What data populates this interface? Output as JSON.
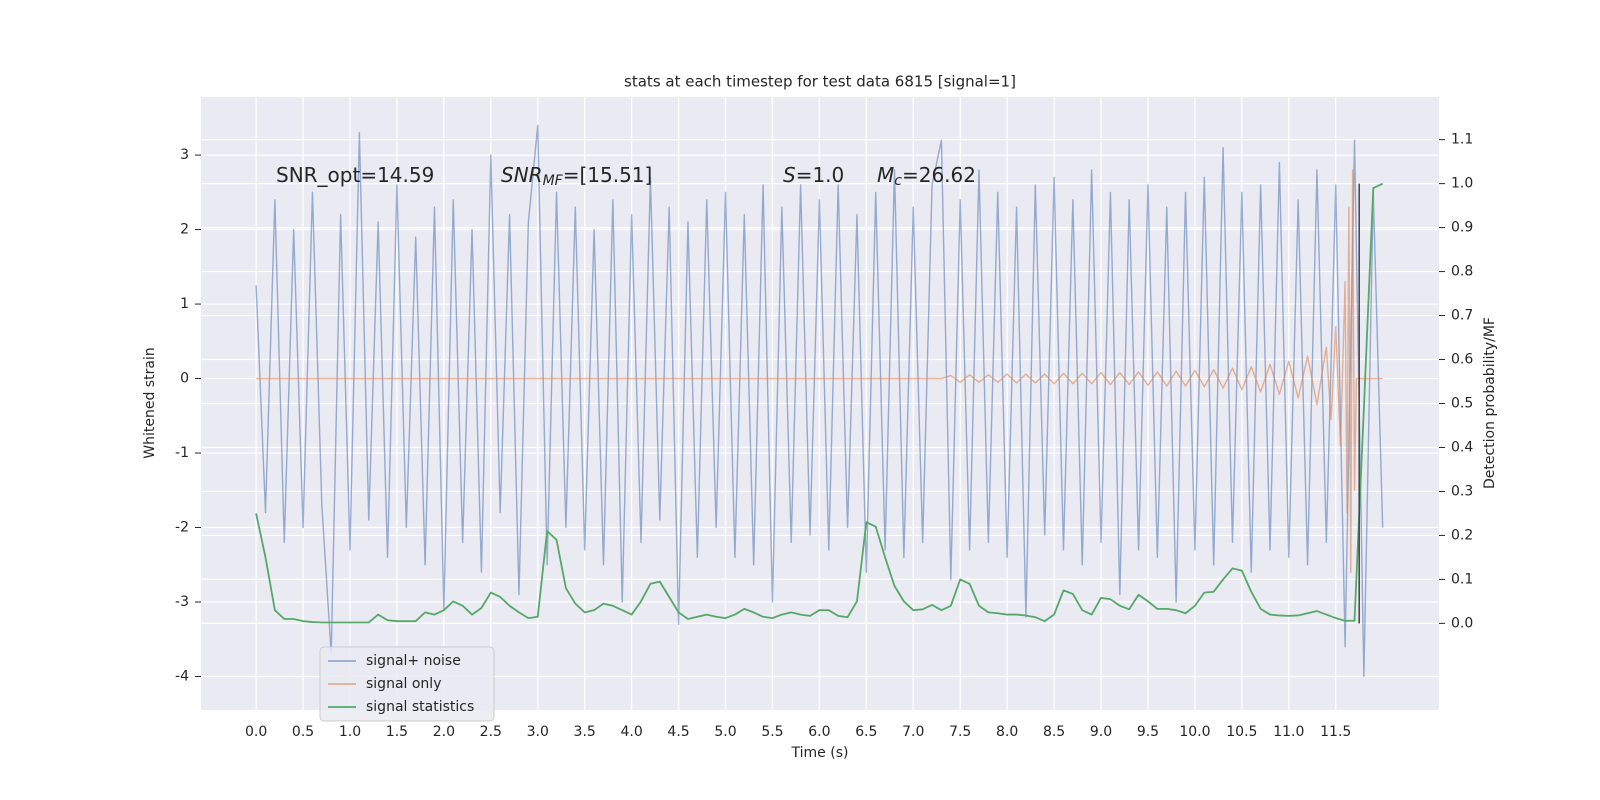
{
  "chart_data": {
    "type": "line",
    "title": "stats at each timestep for test data 6815 [signal=1]",
    "xlabel": "Time (s)",
    "ylabel": "Whitened strain",
    "y2label": "Detection probability/MF",
    "annotations": [
      {
        "text": "SNR_opt=14.59"
      },
      {
        "math": "SNR",
        "sub": "MF",
        "text": "=[15.51]"
      },
      {
        "math": "S",
        "text": "=1.0"
      },
      {
        "math": "M",
        "sub": "c",
        "text": "=26.62"
      }
    ],
    "xlim": [
      -0.587,
      12.6
    ],
    "ylim": [
      -4.45,
      3.78
    ],
    "y2lim": [
      -0.197,
      1.197
    ],
    "xticks": [
      {
        "value": 0,
        "label": "0.0"
      },
      0.5,
      {
        "value": 1,
        "label": "1.0"
      },
      1.5,
      {
        "value": 2,
        "label": "2.0"
      },
      2.5,
      {
        "value": 3,
        "label": "3.0"
      },
      3.5,
      {
        "value": 4,
        "label": "4.0"
      },
      4.5,
      {
        "value": 5,
        "label": "5.0"
      },
      5.5,
      {
        "value": 6,
        "label": "6.0"
      },
      6.5,
      {
        "value": 7,
        "label": "7.0"
      },
      7.5,
      {
        "value": 8,
        "label": "8.0"
      },
      8.5,
      {
        "value": 9,
        "label": "9.0"
      },
      9.5,
      {
        "value": 10,
        "label": "10.0"
      },
      10.5,
      {
        "value": 11,
        "label": "11.0"
      },
      11.5
    ],
    "yticks": [
      -4,
      -3,
      -2,
      -1,
      0,
      1,
      2,
      3
    ],
    "y2ticks": [
      {
        "value": 0,
        "label": "0.0"
      },
      0.1,
      0.2,
      0.3,
      0.4,
      0.5,
      0.6,
      0.7,
      0.8,
      0.9,
      {
        "value": 1,
        "label": "1.0"
      },
      1.1
    ],
    "grid": true,
    "legend": "lower left",
    "vline": {
      "x": 11.75,
      "ymin": 0,
      "ymax": 1.0,
      "color": "#444444"
    },
    "series": [
      {
        "name": "signal+ noise",
        "color": "#4c72b0",
        "x": [
          0,
          0.1,
          0.2,
          0.3,
          0.4,
          0.5,
          0.6,
          0.7,
          0.8,
          0.9,
          1,
          1.1,
          1.2,
          1.3,
          1.4,
          1.5,
          1.6,
          1.7,
          1.8,
          1.9,
          2,
          2.1,
          2.2,
          2.3,
          2.4,
          2.5,
          2.6,
          2.7,
          2.8,
          2.9,
          3,
          3.1,
          3.2,
          3.3,
          3.4,
          3.5,
          3.6,
          3.7,
          3.8,
          3.9,
          4,
          4.1,
          4.2,
          4.3,
          4.4,
          4.5,
          4.6,
          4.7,
          4.8,
          4.9,
          5,
          5.1,
          5.2,
          5.3,
          5.4,
          5.5,
          5.6,
          5.7,
          5.8,
          5.9,
          6,
          6.1,
          6.2,
          6.3,
          6.4,
          6.5,
          6.6,
          6.7,
          6.8,
          6.9,
          7,
          7.1,
          7.2,
          7.3,
          7.4,
          7.5,
          7.6,
          7.7,
          7.8,
          7.9,
          8,
          8.1,
          8.2,
          8.3,
          8.4,
          8.5,
          8.6,
          8.7,
          8.8,
          8.9,
          9,
          9.1,
          9.2,
          9.3,
          9.4,
          9.5,
          9.6,
          9.7,
          9.8,
          9.9,
          10,
          10.1,
          10.2,
          10.3,
          10.4,
          10.5,
          10.6,
          10.7,
          10.8,
          10.9,
          11,
          11.1,
          11.2,
          11.3,
          11.4,
          11.5,
          11.6,
          11.7,
          11.8,
          11.9,
          12
        ],
        "values": [
          1.25,
          -1.8,
          2.4,
          -2.2,
          2.0,
          -2.0,
          2.5,
          -1.7,
          -3.7,
          2.2,
          -2.3,
          3.3,
          -1.9,
          2.1,
          -2.4,
          2.6,
          -2.0,
          1.9,
          -2.5,
          2.3,
          -3.1,
          2.4,
          -2.2,
          2.0,
          -2.6,
          3.0,
          -1.8,
          2.2,
          -2.9,
          2.1,
          3.4,
          -2.5,
          2.5,
          -2.0,
          2.3,
          -2.3,
          2.0,
          -2.5,
          2.4,
          -3.0,
          2.2,
          -2.2,
          2.7,
          -1.9,
          2.3,
          -3.3,
          2.1,
          -2.4,
          2.4,
          -2.0,
          2.5,
          -2.4,
          2.2,
          -2.5,
          2.6,
          -3.0,
          2.3,
          -2.2,
          2.6,
          -2.1,
          2.4,
          -2.3,
          2.6,
          -2.0,
          2.2,
          -2.6,
          2.5,
          -2.3,
          2.8,
          -2.4,
          2.3,
          -2.2,
          2.6,
          3.2,
          -2.7,
          2.4,
          -2.3,
          2.8,
          -2.2,
          2.5,
          -2.4,
          2.3,
          -3.2,
          2.6,
          -2.1,
          2.7,
          -2.3,
          2.4,
          -2.5,
          2.8,
          -2.2,
          2.5,
          -2.9,
          2.4,
          -2.3,
          2.6,
          -2.4,
          2.3,
          -3.0,
          2.5,
          -2.3,
          2.7,
          -2.5,
          3.1,
          -2.2,
          2.5,
          -2.6,
          2.6,
          -2.3,
          2.9,
          -2.4,
          2.4,
          -2.5,
          2.8,
          -2.2,
          2.6,
          -3.6,
          3.2,
          -4.0,
          2.5,
          -2.0
        ]
      },
      {
        "name": "signal only",
        "color": "#dd8452",
        "x": [
          0,
          7.3,
          7.4,
          7.5,
          7.6,
          7.7,
          7.8,
          7.9,
          8,
          8.1,
          8.2,
          8.3,
          8.4,
          8.5,
          8.6,
          8.7,
          8.8,
          8.9,
          9,
          9.1,
          9.2,
          9.3,
          9.4,
          9.5,
          9.6,
          9.7,
          9.8,
          9.9,
          10,
          10.1,
          10.2,
          10.3,
          10.4,
          10.5,
          10.6,
          10.7,
          10.8,
          10.9,
          11,
          11.1,
          11.2,
          11.3,
          11.4,
          11.45,
          11.5,
          11.55,
          11.6,
          11.62,
          11.64,
          11.66,
          11.68,
          11.7,
          11.72,
          12
        ],
        "values": [
          0,
          0,
          0.04,
          -0.05,
          0.05,
          -0.05,
          0.05,
          -0.05,
          0.06,
          -0.06,
          0.06,
          -0.06,
          0.06,
          -0.07,
          0.07,
          -0.07,
          0.07,
          -0.07,
          0.08,
          -0.08,
          0.08,
          -0.08,
          0.09,
          -0.09,
          0.09,
          -0.1,
          0.1,
          -0.1,
          0.11,
          -0.11,
          0.12,
          -0.13,
          0.14,
          -0.15,
          0.16,
          -0.18,
          0.19,
          -0.21,
          0.23,
          -0.26,
          0.3,
          -0.35,
          0.42,
          -0.55,
          0.7,
          -0.9,
          1.3,
          -1.8,
          2.3,
          -2.6,
          2.8,
          -1.5,
          0,
          0
        ]
      },
      {
        "name": "signal statistics",
        "color": "#55a868",
        "axis": "y2",
        "x": [
          0,
          0.1,
          0.2,
          0.3,
          0.4,
          0.5,
          0.6,
          0.7,
          0.8,
          0.9,
          1,
          1.1,
          1.2,
          1.3,
          1.4,
          1.5,
          1.6,
          1.7,
          1.8,
          1.9,
          2,
          2.1,
          2.2,
          2.3,
          2.4,
          2.5,
          2.6,
          2.7,
          2.8,
          2.9,
          3,
          3.1,
          3.2,
          3.3,
          3.4,
          3.5,
          3.6,
          3.7,
          3.8,
          3.9,
          4,
          4.1,
          4.2,
          4.3,
          4.4,
          4.5,
          4.6,
          4.7,
          4.8,
          4.9,
          5,
          5.1,
          5.2,
          5.3,
          5.4,
          5.5,
          5.6,
          5.7,
          5.8,
          5.9,
          6,
          6.1,
          6.2,
          6.3,
          6.4,
          6.5,
          6.6,
          6.7,
          6.8,
          6.9,
          7,
          7.1,
          7.2,
          7.3,
          7.4,
          7.5,
          7.6,
          7.7,
          7.8,
          7.9,
          8,
          8.1,
          8.2,
          8.3,
          8.4,
          8.5,
          8.6,
          8.7,
          8.8,
          8.9,
          9,
          9.1,
          9.2,
          9.3,
          9.4,
          9.5,
          9.6,
          9.7,
          9.8,
          9.9,
          10,
          10.1,
          10.2,
          10.3,
          10.4,
          10.5,
          10.6,
          10.7,
          10.8,
          10.9,
          11,
          11.1,
          11.2,
          11.3,
          11.4,
          11.5,
          11.6,
          11.7,
          11.8,
          11.9,
          12
        ],
        "values": [
          0.25,
          0.15,
          0.03,
          0.01,
          0.01,
          0.005,
          0.003,
          0.002,
          0.002,
          0.002,
          0.002,
          0.002,
          0.002,
          0.02,
          0.007,
          0.005,
          0.005,
          0.005,
          0.025,
          0.02,
          0.03,
          0.05,
          0.04,
          0.02,
          0.035,
          0.07,
          0.06,
          0.04,
          0.025,
          0.012,
          0.015,
          0.21,
          0.19,
          0.08,
          0.045,
          0.025,
          0.03,
          0.045,
          0.04,
          0.03,
          0.02,
          0.05,
          0.09,
          0.095,
          0.06,
          0.025,
          0.01,
          0.015,
          0.02,
          0.015,
          0.012,
          0.02,
          0.033,
          0.025,
          0.015,
          0.012,
          0.02,
          0.025,
          0.02,
          0.017,
          0.03,
          0.03,
          0.017,
          0.014,
          0.05,
          0.23,
          0.22,
          0.15,
          0.085,
          0.05,
          0.03,
          0.032,
          0.042,
          0.03,
          0.04,
          0.1,
          0.09,
          0.04,
          0.025,
          0.023,
          0.02,
          0.02,
          0.018,
          0.014,
          0.005,
          0.02,
          0.075,
          0.067,
          0.03,
          0.02,
          0.058,
          0.055,
          0.04,
          0.032,
          0.065,
          0.05,
          0.033,
          0.033,
          0.03,
          0.023,
          0.04,
          0.07,
          0.072,
          0.1,
          0.125,
          0.12,
          0.072,
          0.033,
          0.02,
          0.018,
          0.017,
          0.018,
          0.023,
          0.028,
          0.02,
          0.012,
          0.006,
          0.006,
          0.49,
          0.99,
          1.0
        ]
      }
    ]
  }
}
